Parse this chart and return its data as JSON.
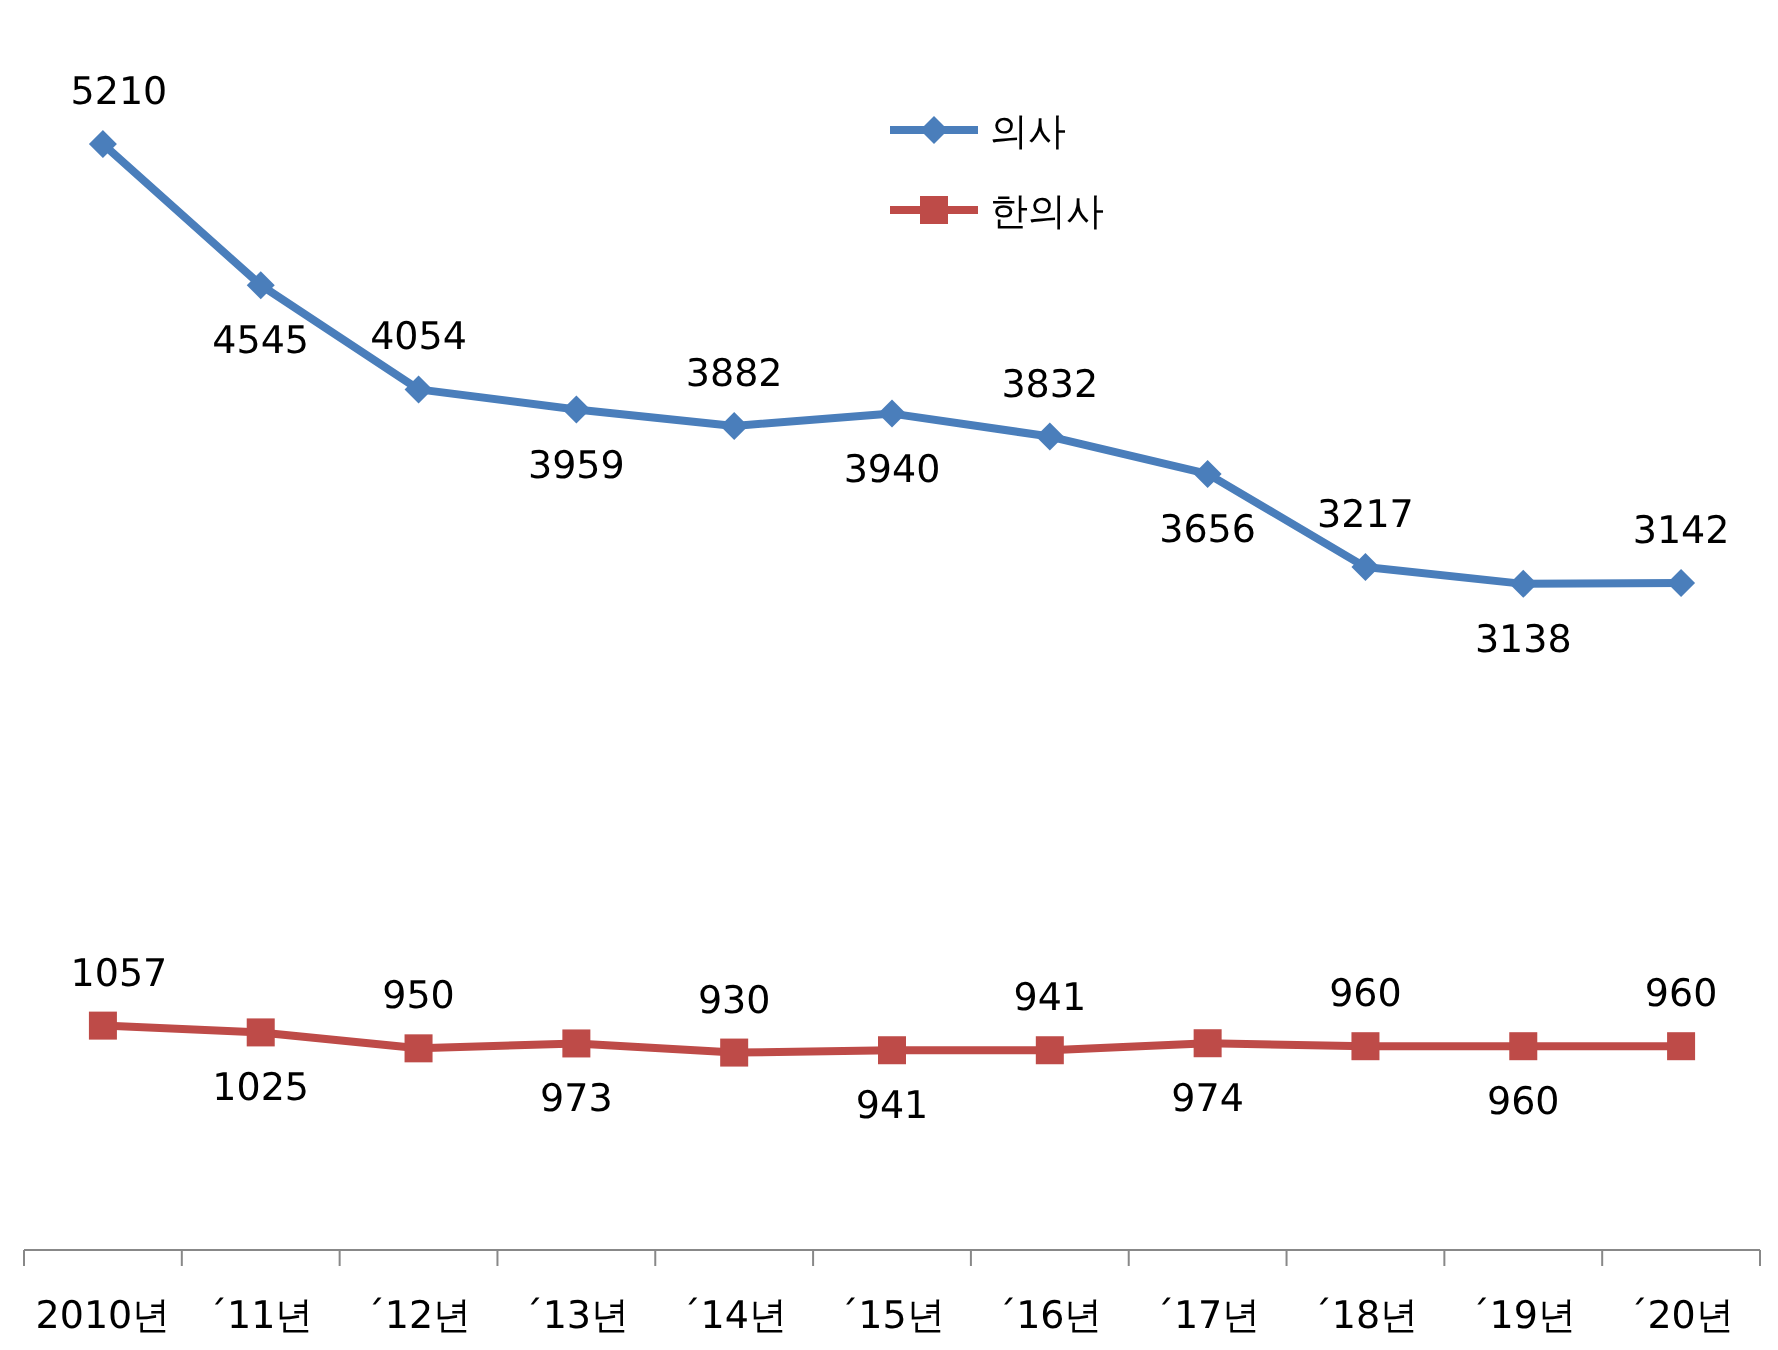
{
  "chart_data": {
    "type": "line",
    "categories": [
      "2010년",
      "´11년",
      "´12년",
      "´13년",
      "´14년",
      "´15년",
      "´16년",
      "´17년",
      "´18년",
      "´19년",
      "´20년"
    ],
    "series": [
      {
        "name": "의사",
        "color": "#4a7ebb",
        "marker": "diamond",
        "values": [
          5210,
          4545,
          4054,
          3959,
          3882,
          3940,
          3832,
          3656,
          3217,
          3138,
          3142
        ]
      },
      {
        "name": "한의사",
        "color": "#be4b48",
        "marker": "square",
        "values": [
          1057,
          1025,
          950,
          973,
          930,
          941,
          941,
          974,
          960,
          960,
          960
        ]
      }
    ],
    "data_labels": true,
    "legend": "top",
    "line_style": "solid"
  }
}
